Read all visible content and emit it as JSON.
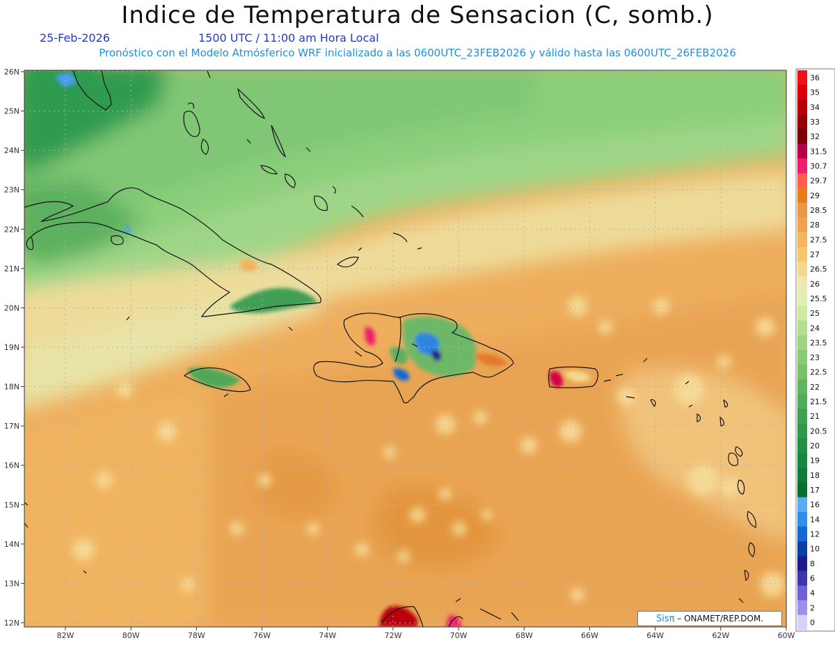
{
  "header": {
    "title": "Indice de Temperatura de Sensacion (C, somb.)",
    "date": "25-Feb-2026",
    "time": "1500 UTC / 11:00 am Hora Local",
    "model_info": "Pronóstico con el Modelo Atmósferico WRF inicializado a las 0600UTC_23FEB2026 y válido hasta las  0600UTC_26FEB2026"
  },
  "axes": {
    "lat_labels": [
      "26N",
      "25N",
      "24N",
      "23N",
      "22N",
      "21N",
      "20N",
      "19N",
      "18N",
      "17N",
      "16N",
      "15N",
      "14N",
      "13N",
      "12N"
    ],
    "lon_labels": [
      "82W",
      "80W",
      "78W",
      "76W",
      "74W",
      "72W",
      "70W",
      "68W",
      "66W",
      "64W",
      "62W",
      "60W"
    ]
  },
  "legend": {
    "labels": [
      "36",
      "35",
      "34",
      "33",
      "32",
      "31.5",
      "30.7",
      "29.7",
      "29",
      "28.5",
      "28",
      "27.5",
      "27",
      "26.5",
      "26",
      "25.5",
      "25",
      "24",
      "23.5",
      "23",
      "22.5",
      "22",
      "21.5",
      "21",
      "20.5",
      "20",
      "19",
      "18",
      "17",
      "16",
      "14",
      "12",
      "10",
      "8",
      "6",
      "4",
      "2",
      "0"
    ],
    "colors": [
      "#f20f17",
      "#d9000c",
      "#b8000a",
      "#950007",
      "#7d0006",
      "#b8004a",
      "#f01e6e",
      "#ff5e4a",
      "#e87d17",
      "#ed9644",
      "#f0a24e",
      "#f4b55b",
      "#f5c76a",
      "#f3d98b",
      "#f0e8b0",
      "#e2efb0",
      "#cdeaa0",
      "#b3e08f",
      "#9fd582",
      "#8bca74",
      "#78c06a",
      "#63b561",
      "#50ab5a",
      "#3ea152",
      "#2e984c",
      "#209046",
      "#16883f",
      "#0d7d37",
      "#0a6e30",
      "#5aacf2",
      "#2f8ee8",
      "#1168d6",
      "#0b3fa8",
      "#1f1a8a",
      "#3b36b0",
      "#6e60d8",
      "#9c90ea",
      "#d6d2f8"
    ]
  },
  "credit": {
    "logo_text": "Sisπ",
    "text": "– ONAMET/REP.DOM."
  }
}
